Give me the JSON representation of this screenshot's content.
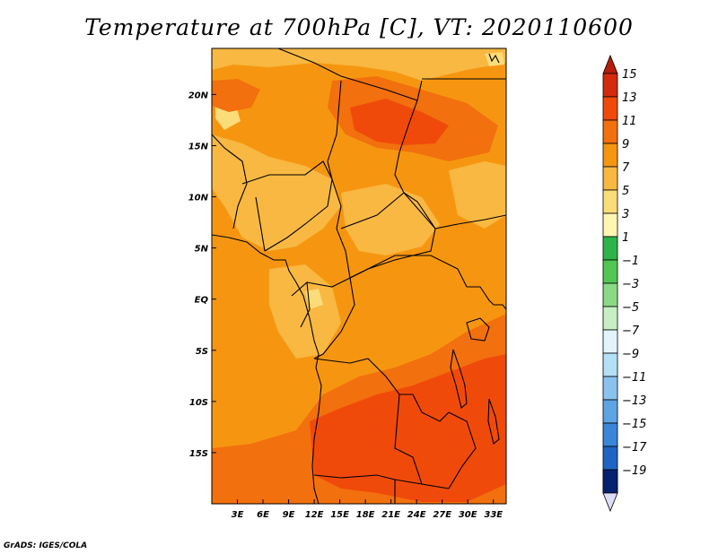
{
  "title": "Temperature at 700hPa [C], VT: 2020110600",
  "footer": "GrADS: IGES/COLA",
  "map": {
    "variable": "Temperature",
    "level": "700hPa",
    "units": "C",
    "valid_time": "2020110600",
    "lon_range": [
      0,
      34.5
    ],
    "lat_range": [
      -20,
      24.5
    ],
    "x_ticks": [
      {
        "value": 3,
        "label": "3E"
      },
      {
        "value": 6,
        "label": "6E"
      },
      {
        "value": 9,
        "label": "9E"
      },
      {
        "value": 12,
        "label": "12E"
      },
      {
        "value": 15,
        "label": "15E"
      },
      {
        "value": 18,
        "label": "18E"
      },
      {
        "value": 21,
        "label": "21E"
      },
      {
        "value": 24,
        "label": "24E"
      },
      {
        "value": 27,
        "label": "27E"
      },
      {
        "value": 30,
        "label": "30E"
      },
      {
        "value": 33,
        "label": "33E"
      }
    ],
    "y_ticks": [
      {
        "value": 20,
        "label": "20N"
      },
      {
        "value": 15,
        "label": "15N"
      },
      {
        "value": 10,
        "label": "10N"
      },
      {
        "value": 5,
        "label": "5N"
      },
      {
        "value": 0,
        "label": "EQ"
      },
      {
        "value": -5,
        "label": "5S"
      },
      {
        "value": -10,
        "label": "10S"
      },
      {
        "value": -15,
        "label": "15S"
      }
    ]
  },
  "colorbar": {
    "levels": [
      {
        "label": "15",
        "color": "#d42a0e"
      },
      {
        "label": "13",
        "color": "#f04a0a"
      },
      {
        "label": "11",
        "color": "#f2700d"
      },
      {
        "label": "9",
        "color": "#f69610"
      },
      {
        "label": "7",
        "color": "#f8b842"
      },
      {
        "label": "5",
        "color": "#fadc78"
      },
      {
        "label": "3",
        "color": "#fdf6b0"
      },
      {
        "label": "1",
        "color": "#2eb449"
      },
      {
        "label": "−1",
        "color": "#52c653"
      },
      {
        "label": "−3",
        "color": "#8ada85"
      },
      {
        "label": "−5",
        "color": "#c6efc3"
      },
      {
        "label": "−7",
        "color": "#e2f4fa"
      },
      {
        "label": "−9",
        "color": "#b4e0f6"
      },
      {
        "label": "−11",
        "color": "#8ac2ee"
      },
      {
        "label": "−13",
        "color": "#5ea4e4"
      },
      {
        "label": "−15",
        "color": "#3a86d8"
      },
      {
        "label": "−17",
        "color": "#1e64c4"
      },
      {
        "label": "−19",
        "color": "#0c3aa0"
      }
    ],
    "top_arrow_color": "#b41e0a",
    "bottom_arrow_color": "#dcdcf6",
    "extra_swatch_color": "#05206e"
  },
  "field_colors": {
    "base": "#f69610",
    "warm": "#f2700d",
    "hot": "#f04a0a",
    "cool": "#f8b842",
    "coolest": "#fadc78"
  }
}
